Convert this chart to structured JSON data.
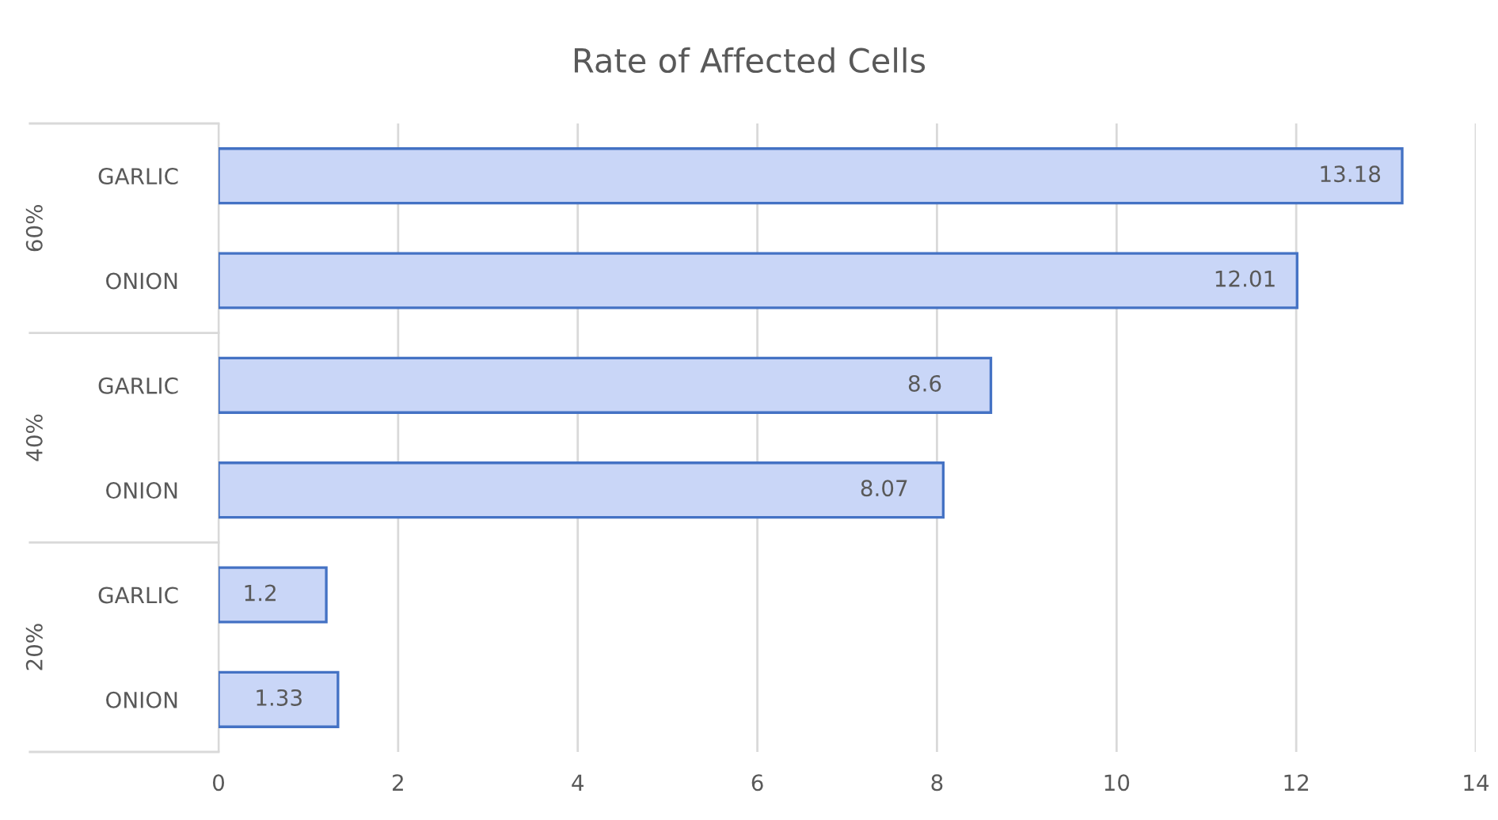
{
  "chart_data": {
    "type": "bar",
    "orientation": "horizontal",
    "title": "Rate of Affected Cells",
    "categories": [
      "GARLIC",
      "ONION",
      "GARLIC",
      "ONION",
      "GARLIC",
      "ONION"
    ],
    "values": [
      13.18,
      12.01,
      8.6,
      8.07,
      1.2,
      1.33
    ],
    "color": "#c9d6f7",
    "data_labels": true,
    "annotations": [
      "60%",
      "40%",
      "20%"
    ],
    "xlim": [
      0,
      14
    ],
    "xticks": [
      0,
      2,
      4,
      6,
      8,
      10,
      12,
      14
    ],
    "grid": "x"
  }
}
